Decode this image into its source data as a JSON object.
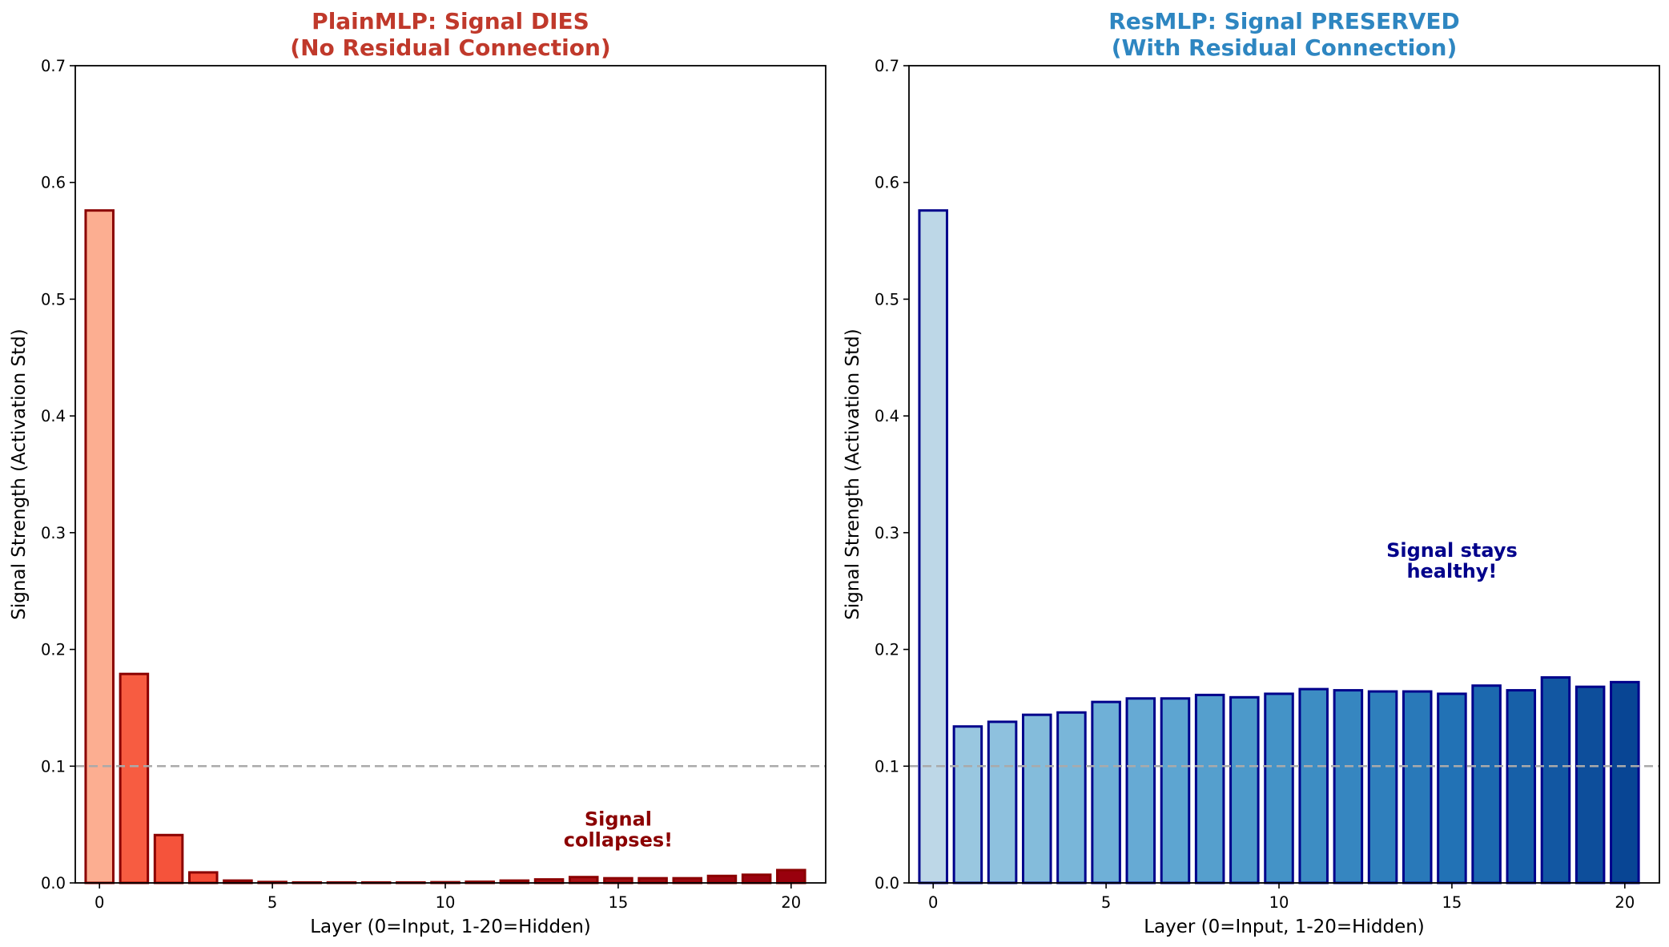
{
  "chart_data": [
    {
      "type": "bar",
      "title": "PlainMLP: Signal DIES",
      "subtitle": "(No Residual Connection)",
      "title_color": "#c0392b",
      "xlabel": "Layer (0=Input, 1-20=Hidden)",
      "ylabel": "Signal Strength (Activation Std)",
      "ylim": [
        0,
        0.7
      ],
      "yticks": [
        "0.0",
        "0.1",
        "0.2",
        "0.3",
        "0.4",
        "0.5",
        "0.6",
        "0.7"
      ],
      "xticks": [
        "0",
        "5",
        "10",
        "15",
        "20"
      ],
      "grid": false,
      "reference_line": 0.1,
      "categories": [
        0,
        1,
        2,
        3,
        4,
        5,
        6,
        7,
        8,
        9,
        10,
        11,
        12,
        13,
        14,
        15,
        16,
        17,
        18,
        19,
        20
      ],
      "values": [
        0.576,
        0.179,
        0.041,
        0.009,
        0.002,
        0.0008,
        0.0004,
        0.0003,
        0.0003,
        0.0004,
        0.0006,
        0.001,
        0.002,
        0.003,
        0.005,
        0.004,
        0.004,
        0.004,
        0.006,
        0.007,
        0.011
      ],
      "colormap": "Reds",
      "edge_color": "#8b0000",
      "annotation": {
        "lines": [
          "Signal",
          "collapses!"
        ],
        "color": "#8b0000",
        "x": 15,
        "y": 0.03
      }
    },
    {
      "type": "bar",
      "title": "ResMLP: Signal PRESERVED",
      "subtitle": "(With Residual Connection)",
      "title_color": "#2e86c1",
      "xlabel": "Layer (0=Input, 1-20=Hidden)",
      "ylabel": "Signal Strength (Activation Std)",
      "ylim": [
        0,
        0.7
      ],
      "yticks": [
        "0.0",
        "0.1",
        "0.2",
        "0.3",
        "0.4",
        "0.5",
        "0.6",
        "0.7"
      ],
      "xticks": [
        "0",
        "5",
        "10",
        "15",
        "20"
      ],
      "grid": false,
      "reference_line": 0.1,
      "categories": [
        0,
        1,
        2,
        3,
        4,
        5,
        6,
        7,
        8,
        9,
        10,
        11,
        12,
        13,
        14,
        15,
        16,
        17,
        18,
        19,
        20
      ],
      "values": [
        0.576,
        0.134,
        0.138,
        0.144,
        0.146,
        0.155,
        0.158,
        0.158,
        0.161,
        0.159,
        0.162,
        0.166,
        0.165,
        0.164,
        0.164,
        0.162,
        0.169,
        0.165,
        0.176,
        0.168,
        0.172
      ],
      "colormap": "Blues",
      "edge_color": "#00008b",
      "annotation": {
        "lines": [
          "Signal stays",
          "healthy!"
        ],
        "color": "#00008b",
        "x": 15,
        "y": 0.26
      }
    }
  ]
}
